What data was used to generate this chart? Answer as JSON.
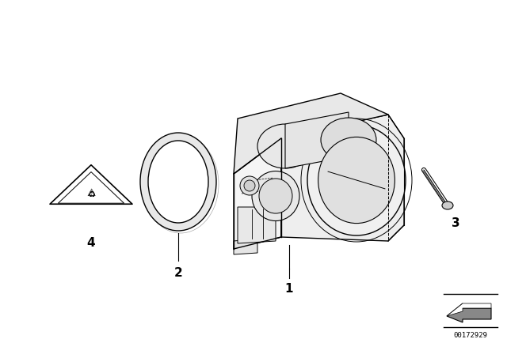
{
  "background_color": "#ffffff",
  "line_color": "#000000",
  "fig_width": 6.4,
  "fig_height": 4.48,
  "dpi": 100,
  "watermark_text": "00172929"
}
